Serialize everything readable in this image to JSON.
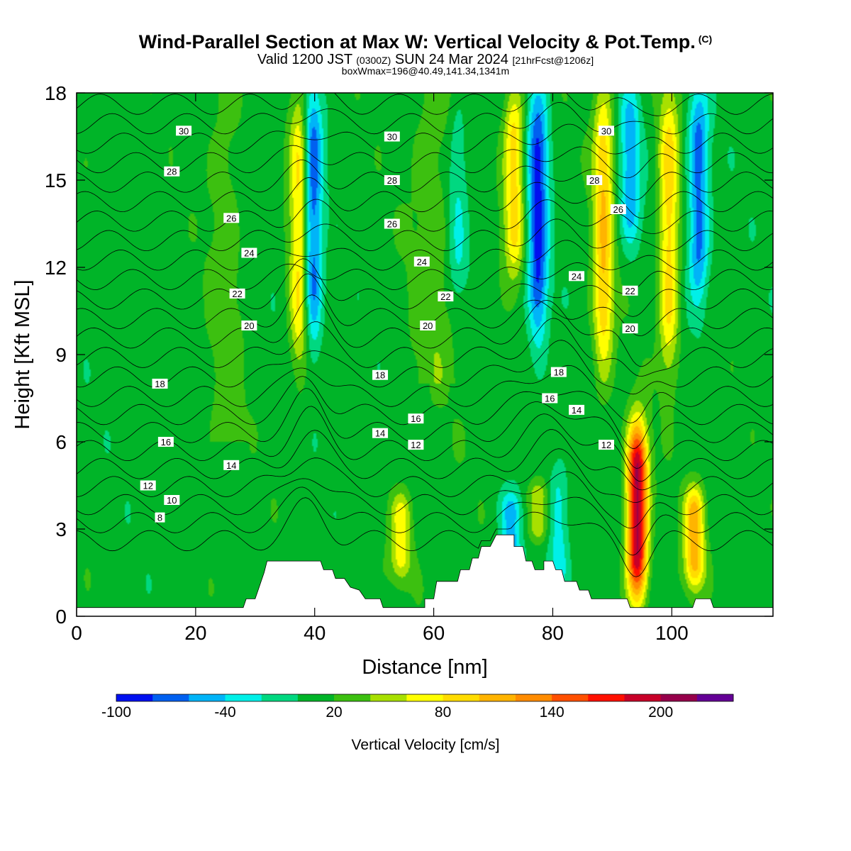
{
  "header": {
    "title": "Wind-Parallel Section at Max W: Vertical Velocity & Pot.Temp.",
    "copyright": "(C)",
    "valid_prefix": "Valid 1200 JST",
    "valid_utc": "(0300Z)",
    "valid_date": "SUN 24 Mar 2024",
    "forecast": "[21hrFcst@1206z]",
    "boxwmax": "boxWmax=196@40.49,141.34,1341m"
  },
  "chart_data": {
    "type": "heatmap",
    "xlabel": "Distance [nm]",
    "ylabel": "Height [Kft MSL]",
    "xlim": [
      0,
      117
    ],
    "ylim": [
      0,
      18
    ],
    "xticks": [
      "0",
      "20",
      "40",
      "60",
      "80",
      "100"
    ],
    "yticks": [
      "0",
      "3",
      "6",
      "9",
      "12",
      "15",
      "18"
    ],
    "colorbar": {
      "label": "Vertical Velocity [cm/s]",
      "tick_labels": [
        "-100",
        "-40",
        "20",
        "80",
        "140",
        "200"
      ],
      "levels": [
        -100,
        -80,
        -60,
        -40,
        -20,
        0,
        20,
        40,
        60,
        80,
        100,
        120,
        140,
        160,
        180,
        200,
        220,
        240
      ],
      "colors": [
        "#0010f0",
        "#0060f0",
        "#00b4f8",
        "#00f0e8",
        "#00d880",
        "#00b428",
        "#3cc010",
        "#a8e000",
        "#ffff00",
        "#ffdc00",
        "#ffb400",
        "#ff8c00",
        "#ff5000",
        "#ff1000",
        "#c80028",
        "#96004b",
        "#640096"
      ]
    },
    "field_features": {
      "background_w": 10,
      "updrafts": [
        {
          "x": 94.2,
          "y_bottom": 0.8,
          "y_top": 6.4,
          "w_max": 196
        },
        {
          "x": 103.8,
          "y_bottom": 1.2,
          "y_top": 4.2,
          "w_max": 100
        },
        {
          "x": 37.6,
          "y_bottom": 8.6,
          "y_top": 18,
          "w_max": 85
        },
        {
          "x": 88.5,
          "y_bottom": 8.5,
          "y_top": 18,
          "w_max": 88
        },
        {
          "x": 99.5,
          "y_bottom": 8.5,
          "y_top": 18,
          "w_max": 80
        },
        {
          "x": 73.5,
          "y_bottom": 12,
          "y_top": 18,
          "w_max": 80
        },
        {
          "x": 54.5,
          "y_bottom": 1.5,
          "y_top": 4,
          "w_max": 60
        },
        {
          "x": 77.6,
          "y_bottom": 2.8,
          "y_top": 4.4,
          "w_max": 55
        }
      ],
      "downdrafts": [
        {
          "x": 39.5,
          "y_bottom": 9.4,
          "y_top": 18,
          "w_min": -95
        },
        {
          "x": 77.5,
          "y_bottom": 9.6,
          "y_top": 18,
          "w_min": -95
        },
        {
          "x": 104.5,
          "y_bottom": 11,
          "y_top": 18,
          "w_min": -80
        },
        {
          "x": 93,
          "y_bottom": 13,
          "y_top": 18,
          "w_min": -60
        },
        {
          "x": 64,
          "y_bottom": 11,
          "y_top": 17.5,
          "w_min": -35
        },
        {
          "x": 81,
          "y_bottom": 1,
          "y_top": 5,
          "w_min": -40
        },
        {
          "x": 73,
          "y_bottom": 2,
          "y_top": 4,
          "w_min": -60
        }
      ]
    },
    "terrain": [
      [
        0,
        0.3
      ],
      [
        28,
        0.3
      ],
      [
        28.5,
        0.6
      ],
      [
        30,
        0.6
      ],
      [
        30.5,
        0.9
      ],
      [
        31,
        1.2
      ],
      [
        31.5,
        1.5
      ],
      [
        32,
        1.9
      ],
      [
        41,
        1.9
      ],
      [
        41.5,
        1.6
      ],
      [
        43,
        1.6
      ],
      [
        43.5,
        1.3
      ],
      [
        45,
        1.3
      ],
      [
        46,
        1.0
      ],
      [
        47.5,
        0.9
      ],
      [
        48.5,
        0.6
      ],
      [
        51,
        0.6
      ],
      [
        51.5,
        0.3
      ],
      [
        58.5,
        0.3
      ],
      [
        58.5,
        0.6
      ],
      [
        60,
        0.6
      ],
      [
        60.5,
        1.2
      ],
      [
        64,
        1.2
      ],
      [
        64.5,
        1.6
      ],
      [
        66,
        1.6
      ],
      [
        66.5,
        2.0
      ],
      [
        67.5,
        2.0
      ],
      [
        68,
        2.4
      ],
      [
        69.5,
        2.4
      ],
      [
        70,
        2.6
      ],
      [
        70.5,
        2.8
      ],
      [
        73.5,
        2.8
      ],
      [
        73.5,
        2.4
      ],
      [
        75,
        2.4
      ],
      [
        75.5,
        1.9
      ],
      [
        76.5,
        1.9
      ],
      [
        77,
        1.6
      ],
      [
        78.5,
        1.6
      ],
      [
        78.5,
        1.9
      ],
      [
        80,
        1.9
      ],
      [
        80.5,
        1.6
      ],
      [
        81.5,
        1.6
      ],
      [
        82,
        1.2
      ],
      [
        84,
        1.2
      ],
      [
        84.5,
        0.9
      ],
      [
        86,
        0.9
      ],
      [
        86.5,
        0.6
      ],
      [
        92.5,
        0.6
      ],
      [
        93,
        0.3
      ],
      [
        103.5,
        0.3
      ],
      [
        104,
        0.6
      ],
      [
        106.5,
        0.6
      ],
      [
        107,
        0.3
      ],
      [
        117,
        0.3
      ]
    ],
    "theta_contours": {
      "levels": [
        8,
        9,
        10,
        11,
        12,
        13,
        14,
        15,
        16,
        17,
        18,
        19,
        20,
        21,
        22,
        23,
        24,
        25,
        26,
        27,
        28,
        29,
        30,
        31
      ],
      "labels": [
        {
          "text": "8",
          "x": 14,
          "y": 3.4
        },
        {
          "text": "10",
          "x": 16,
          "y": 4.0
        },
        {
          "text": "12",
          "x": 12,
          "y": 4.5
        },
        {
          "text": "14",
          "x": 26,
          "y": 5.2
        },
        {
          "text": "16",
          "x": 15,
          "y": 6.0
        },
        {
          "text": "18",
          "x": 14,
          "y": 8.0
        },
        {
          "text": "20",
          "x": 29,
          "y": 10.0
        },
        {
          "text": "22",
          "x": 27,
          "y": 11.1
        },
        {
          "text": "24",
          "x": 29,
          "y": 12.5
        },
        {
          "text": "26",
          "x": 26,
          "y": 13.7
        },
        {
          "text": "28",
          "x": 16,
          "y": 15.3
        },
        {
          "text": "30",
          "x": 18,
          "y": 16.7
        },
        {
          "text": "14",
          "x": 51,
          "y": 6.3
        },
        {
          "text": "12",
          "x": 57,
          "y": 5.9
        },
        {
          "text": "16",
          "x": 57,
          "y": 6.8
        },
        {
          "text": "18",
          "x": 51,
          "y": 8.3
        },
        {
          "text": "20",
          "x": 59,
          "y": 10.0
        },
        {
          "text": "22",
          "x": 62,
          "y": 11.0
        },
        {
          "text": "24",
          "x": 58,
          "y": 12.2
        },
        {
          "text": "26",
          "x": 53,
          "y": 13.5
        },
        {
          "text": "28",
          "x": 53,
          "y": 15.0
        },
        {
          "text": "30",
          "x": 53,
          "y": 16.5
        },
        {
          "text": "16",
          "x": 79.5,
          "y": 7.5
        },
        {
          "text": "14",
          "x": 84,
          "y": 7.1
        },
        {
          "text": "12",
          "x": 89,
          "y": 5.9
        },
        {
          "text": "18",
          "x": 81,
          "y": 8.4
        },
        {
          "text": "20",
          "x": 93,
          "y": 9.9
        },
        {
          "text": "22",
          "x": 93,
          "y": 11.2
        },
        {
          "text": "24",
          "x": 84,
          "y": 11.7
        },
        {
          "text": "26",
          "x": 91,
          "y": 14.0
        },
        {
          "text": "28",
          "x": 87,
          "y": 15.0
        },
        {
          "text": "30",
          "x": 89,
          "y": 16.7
        }
      ]
    }
  }
}
